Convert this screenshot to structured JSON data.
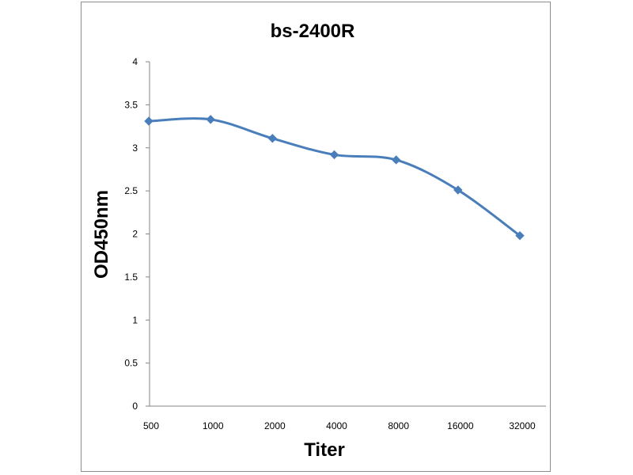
{
  "chart_data": {
    "type": "line",
    "title": "bs-2400R",
    "xlabel": "Titer",
    "ylabel": "OD450nm",
    "categories": [
      "500",
      "1000",
      "2000",
      "4000",
      "8000",
      "16000",
      "32000"
    ],
    "yticks": [
      "0",
      "0.5",
      "1",
      "1.5",
      "2",
      "2.5",
      "3",
      "3.5",
      "4"
    ],
    "ylim": [
      0,
      4
    ],
    "grid": false,
    "legend": "none",
    "series": [
      {
        "values": [
          3.31,
          3.33,
          3.11,
          2.92,
          2.86,
          2.51,
          1.98
        ],
        "color": "#4a7ebb"
      }
    ]
  }
}
